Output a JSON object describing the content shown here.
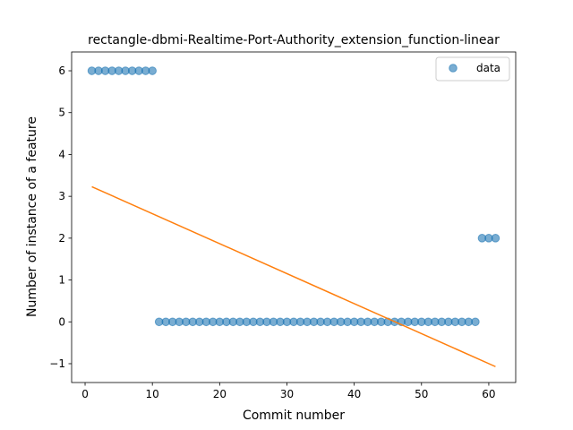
{
  "chart_data": {
    "type": "scatter",
    "title": "rectangle-dbmi-Realtime-Port-Authority_extension_function-linear",
    "xlabel": "Commit number",
    "ylabel": "Number of instance of a feature",
    "xlim": [
      -2,
      64
    ],
    "ylim": [
      -1.45,
      6.45
    ],
    "xticks": [
      0,
      10,
      20,
      30,
      40,
      50,
      60
    ],
    "yticks": [
      -1,
      0,
      1,
      2,
      3,
      4,
      5,
      6
    ],
    "legend": {
      "placement": "top-right",
      "entries": [
        "data"
      ]
    },
    "grid": false,
    "series": [
      {
        "name": "data",
        "kind": "scatter",
        "color": "#1f77b4",
        "x": [
          1,
          2,
          3,
          4,
          5,
          6,
          7,
          8,
          9,
          10,
          11,
          12,
          13,
          14,
          15,
          16,
          17,
          18,
          19,
          20,
          21,
          22,
          23,
          24,
          25,
          26,
          27,
          28,
          29,
          30,
          31,
          32,
          33,
          34,
          35,
          36,
          37,
          38,
          39,
          40,
          41,
          42,
          43,
          44,
          45,
          46,
          47,
          48,
          49,
          50,
          51,
          52,
          53,
          54,
          55,
          56,
          57,
          58,
          59,
          60,
          61
        ],
        "y": [
          6,
          6,
          6,
          6,
          6,
          6,
          6,
          6,
          6,
          6,
          0,
          0,
          0,
          0,
          0,
          0,
          0,
          0,
          0,
          0,
          0,
          0,
          0,
          0,
          0,
          0,
          0,
          0,
          0,
          0,
          0,
          0,
          0,
          0,
          0,
          0,
          0,
          0,
          0,
          0,
          0,
          0,
          0,
          0,
          0,
          0,
          0,
          0,
          0,
          0,
          0,
          0,
          0,
          0,
          0,
          0,
          0,
          0,
          2,
          2,
          2
        ]
      },
      {
        "kind": "line",
        "color": "#ff7f0e",
        "x": [
          1,
          61
        ],
        "y": [
          3.23,
          -1.07
        ]
      }
    ]
  }
}
